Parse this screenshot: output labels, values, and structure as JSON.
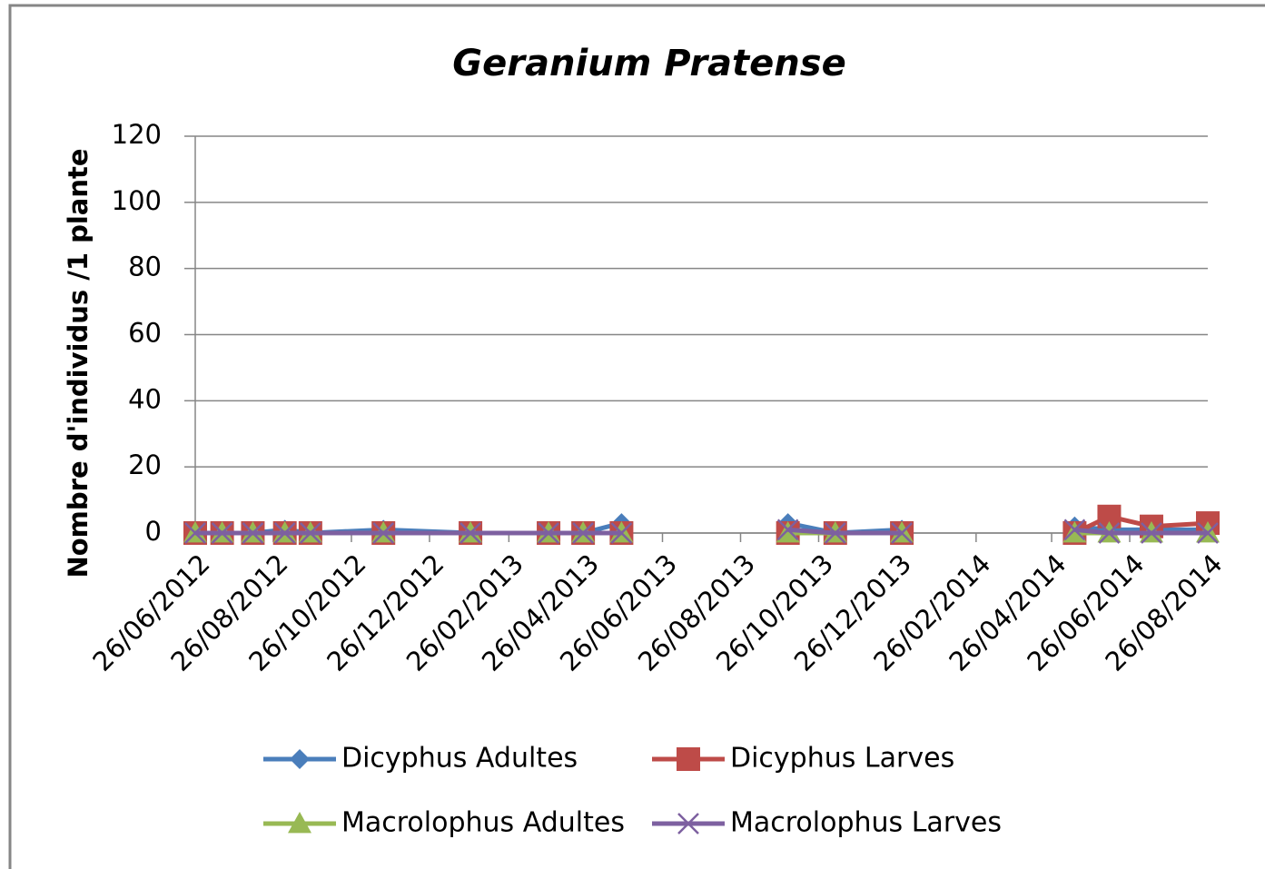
{
  "chart_data": {
    "type": "line",
    "title": "Geranium Pratense",
    "y_label": "Nombre d'individus /1 plante",
    "x": [
      "26/06/2012",
      "17/07/2012",
      "10/08/2012",
      "04/09/2012",
      "24/09/2012",
      "20/11/2012",
      "27/01/2013",
      "29/03/2013",
      "25/04/2013",
      "25/05/2013",
      "26/08/2013",
      "02/10/2013",
      "08/11/2013",
      "30/12/2013",
      "26/03/2014",
      "14/05/2014",
      "10/06/2014",
      "13/07/2014",
      "26/08/2014"
    ],
    "series": [
      {
        "name": "Dicyphus Adultes",
        "color": "#4a7ebb",
        "marker": "diamond",
        "values": [
          0,
          0,
          0,
          1,
          0,
          1,
          0,
          0,
          0,
          3,
          null,
          3,
          0,
          1,
          null,
          2,
          1,
          1,
          1
        ]
      },
      {
        "name": "Dicyphus Larves",
        "color": "#be4b48",
        "marker": "square",
        "values": [
          0,
          0,
          0,
          0,
          0,
          0,
          0,
          0,
          0,
          0,
          null,
          0,
          0,
          0,
          null,
          0,
          5,
          2,
          3
        ]
      },
      {
        "name": "Macrolophus Adultes",
        "color": "#98b954",
        "marker": "triangle",
        "values": [
          0,
          0,
          0,
          0,
          0,
          0,
          0,
          0,
          0,
          0,
          null,
          0,
          0,
          0,
          null,
          0,
          0,
          0,
          0
        ]
      },
      {
        "name": "Macrolophus Larves",
        "color": "#7d60a0",
        "marker": "x",
        "values": [
          0,
          0,
          0,
          0,
          0,
          0,
          0,
          0,
          0,
          0,
          null,
          1,
          0,
          0,
          null,
          1,
          0,
          0,
          0
        ]
      }
    ],
    "xlim": [
      "26/06/2012",
      "26/08/2014"
    ],
    "xticks": [
      "26/06/2012",
      "26/08/2012",
      "26/10/2012",
      "26/12/2012",
      "26/02/2013",
      "26/04/2013",
      "26/06/2013",
      "26/08/2013",
      "26/10/2013",
      "26/12/2013",
      "26/02/2014",
      "26/04/2014",
      "26/06/2014",
      "26/08/2014"
    ],
    "ylim": [
      0,
      120
    ],
    "yticks": [
      0,
      20,
      40,
      60,
      80,
      100,
      120
    ],
    "grid": true
  }
}
